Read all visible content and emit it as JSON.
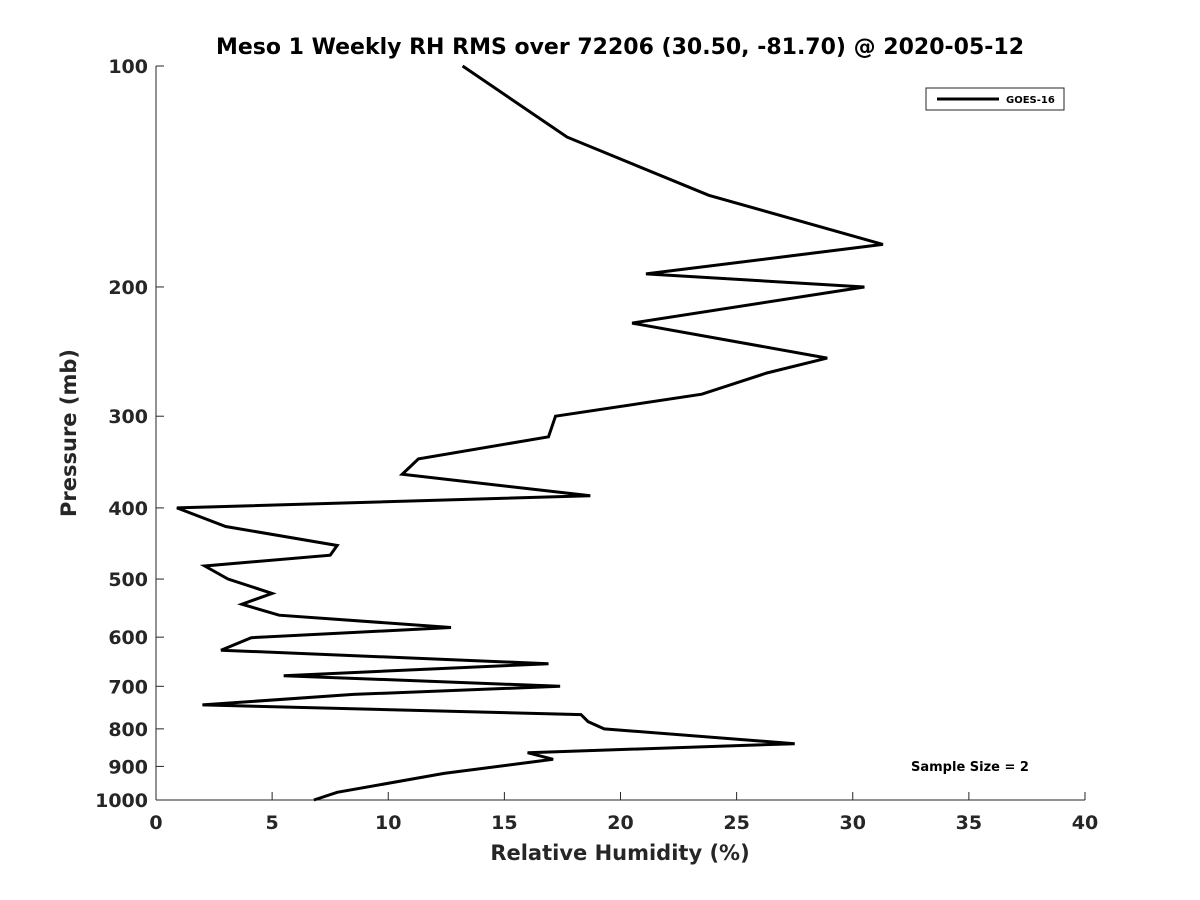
{
  "chart_data": {
    "type": "line",
    "title": "Meso 1 Weekly RH RMS over 72206 (30.50, -81.70) @ 2020-05-12",
    "xlabel": "Relative Humidity (%)",
    "ylabel": "Pressure (mb)",
    "xlim": [
      0,
      40
    ],
    "ylim": [
      100,
      1000
    ],
    "y_scale": "log",
    "y_reversed": true,
    "x_ticks": [
      0,
      5,
      10,
      15,
      20,
      25,
      30,
      35,
      40
    ],
    "y_ticks": [
      100,
      200,
      300,
      400,
      500,
      600,
      700,
      800,
      900,
      1000
    ],
    "grid": false,
    "legend": {
      "placement": "top-right",
      "entries": [
        "GOES-16"
      ]
    },
    "annotation": "Sample Size = 2",
    "series": [
      {
        "name": "GOES-16",
        "color": "#000000",
        "points": [
          [
            13.2,
            100
          ],
          [
            17.7,
            125
          ],
          [
            23.8,
            150
          ],
          [
            31.3,
            175
          ],
          [
            21.1,
            192
          ],
          [
            30.5,
            200
          ],
          [
            20.5,
            224
          ],
          [
            28.9,
            250
          ],
          [
            26.3,
            262
          ],
          [
            23.5,
            280
          ],
          [
            17.2,
            300
          ],
          [
            16.9,
            320
          ],
          [
            11.3,
            343
          ],
          [
            10.6,
            360
          ],
          [
            18.7,
            385
          ],
          [
            0.9,
            400
          ],
          [
            3.0,
            424
          ],
          [
            7.8,
            450
          ],
          [
            7.5,
            464
          ],
          [
            2.1,
            480
          ],
          [
            3.1,
            500
          ],
          [
            5.0,
            523
          ],
          [
            3.7,
            541
          ],
          [
            5.3,
            560
          ],
          [
            12.7,
            582
          ],
          [
            4.1,
            601
          ],
          [
            2.8,
            625
          ],
          [
            16.9,
            652
          ],
          [
            5.5,
            677
          ],
          [
            17.4,
            700
          ],
          [
            8.5,
            718
          ],
          [
            2.0,
            742
          ],
          [
            18.3,
            765
          ],
          [
            18.6,
            782
          ],
          [
            19.3,
            800
          ],
          [
            27.5,
            838
          ],
          [
            16.0,
            862
          ],
          [
            17.1,
            880
          ],
          [
            12.4,
            920
          ],
          [
            7.8,
            976
          ],
          [
            6.8,
            1000
          ]
        ]
      }
    ]
  }
}
